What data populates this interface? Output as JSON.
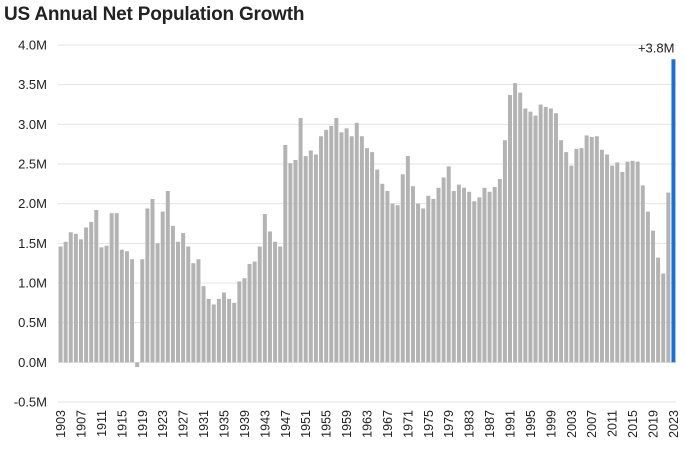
{
  "chart_data": {
    "type": "bar",
    "title": "US Annual Net Population Growth",
    "xlabel": "",
    "ylabel": "",
    "ylim": [
      -0.5,
      4.0
    ],
    "yticks": [
      "4.0M",
      "3.5M",
      "3.0M",
      "2.5M",
      "2.0M",
      "1.5M",
      "1.0M",
      "0.5M",
      "0.0M",
      "-0.5M"
    ],
    "ytick_values": [
      4.0,
      3.5,
      3.0,
      2.5,
      2.0,
      1.5,
      1.0,
      0.5,
      0.0,
      -0.5
    ],
    "unit": "M",
    "grid": "horizontal",
    "legend": "none",
    "colors": {
      "bars": "#b3b3b3",
      "highlight": "#1f6fd1",
      "grid": "#e3e3e3"
    },
    "x_start": 1903,
    "x_end": 2023,
    "xtick_labels": [
      "1903",
      "1907",
      "1911",
      "1915",
      "1919",
      "1923",
      "1927",
      "1931",
      "1935",
      "1939",
      "1943",
      "1947",
      "1951",
      "1955",
      "1959",
      "1963",
      "1967",
      "1971",
      "1975",
      "1979",
      "1983",
      "1987",
      "1991",
      "1995",
      "1999",
      "2003",
      "2007",
      "2011",
      "2015",
      "2019",
      "2023"
    ],
    "values": [
      1.46,
      1.52,
      1.64,
      1.62,
      1.55,
      1.7,
      1.77,
      1.92,
      1.45,
      1.47,
      1.88,
      1.88,
      1.42,
      1.4,
      1.3,
      -0.06,
      1.3,
      1.94,
      2.06,
      1.5,
      1.9,
      2.16,
      1.72,
      1.52,
      1.63,
      1.46,
      1.25,
      1.3,
      0.96,
      0.8,
      0.73,
      0.8,
      0.88,
      0.8,
      0.75,
      1.02,
      1.06,
      1.24,
      1.27,
      1.46,
      1.87,
      1.65,
      1.52,
      1.46,
      2.74,
      2.51,
      2.55,
      3.08,
      2.6,
      2.67,
      2.62,
      2.85,
      2.93,
      2.98,
      3.08,
      2.9,
      2.95,
      2.85,
      3.02,
      2.85,
      2.7,
      2.65,
      2.43,
      2.25,
      2.16,
      2.0,
      1.98,
      2.37,
      2.6,
      2.22,
      2.0,
      1.94,
      2.1,
      2.06,
      2.2,
      2.33,
      2.47,
      2.16,
      2.24,
      2.2,
      2.15,
      2.03,
      2.08,
      2.2,
      2.15,
      2.21,
      2.31,
      2.8,
      3.37,
      3.52,
      3.4,
      3.2,
      3.16,
      3.11,
      3.25,
      3.22,
      3.2,
      3.14,
      2.8,
      2.65,
      2.48,
      2.69,
      2.7,
      2.86,
      2.84,
      2.85,
      2.68,
      2.62,
      2.48,
      2.52,
      2.4,
      2.53,
      2.54,
      2.53,
      2.23,
      1.9,
      1.66,
      1.32,
      1.12,
      2.14,
      3.82
    ],
    "highlight_index": 120,
    "annotation": {
      "text": "+3.8M",
      "target": 2023
    }
  }
}
